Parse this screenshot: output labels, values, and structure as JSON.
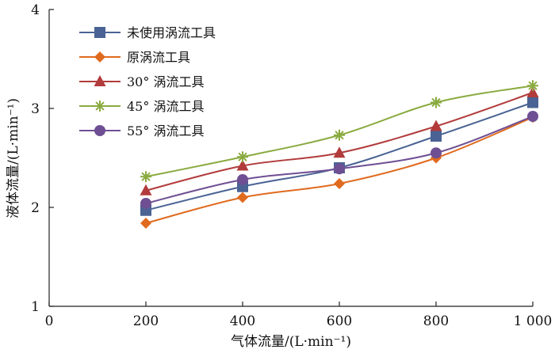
{
  "chart_data": {
    "type": "line",
    "xlabel": "气体流量/(L·min⁻¹)",
    "ylabel": "液体流量/(L·min⁻¹)",
    "xlim": [
      0,
      1000
    ],
    "ylim": [
      1,
      4
    ],
    "xticks": [
      0,
      200,
      400,
      600,
      800,
      1000
    ],
    "xtick_labels": [
      "0",
      "200",
      "400",
      "600",
      "800",
      "1 000"
    ],
    "yticks": [
      1,
      2,
      3,
      4
    ],
    "ytick_labels": [
      "1",
      "2",
      "3",
      "4"
    ],
    "grid": false,
    "legend_position": "top-left",
    "x": [
      200,
      400,
      600,
      800,
      1000
    ],
    "series": [
      {
        "name": "未使用涡流工具",
        "values": [
          1.97,
          2.21,
          2.4,
          2.72,
          3.06
        ],
        "color": "#4A6394",
        "marker": "square"
      },
      {
        "name": "原涡流工具",
        "values": [
          1.84,
          2.1,
          2.24,
          2.5,
          2.91
        ],
        "color": "#E06A1E",
        "marker": "diamond"
      },
      {
        "name": "30° 涡流工具",
        "values": [
          2.17,
          2.42,
          2.55,
          2.82,
          3.16
        ],
        "color": "#B23B3B",
        "marker": "triangle"
      },
      {
        "name": "45° 涡流工具",
        "values": [
          2.31,
          2.51,
          2.73,
          3.06,
          3.23
        ],
        "color": "#8AAB40",
        "marker": "star"
      },
      {
        "name": "55° 涡流工具",
        "values": [
          2.04,
          2.28,
          2.39,
          2.55,
          2.92
        ],
        "color": "#6E4F93",
        "marker": "circle"
      }
    ]
  }
}
